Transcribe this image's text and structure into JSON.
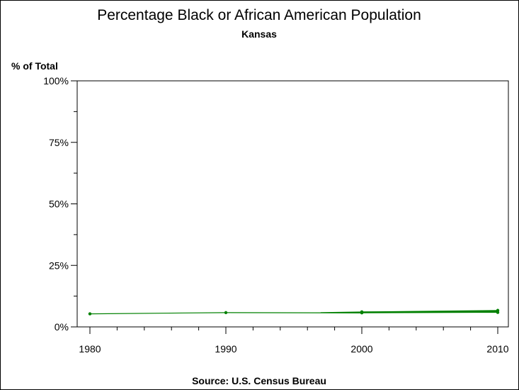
{
  "chart_data": {
    "type": "line",
    "title": "Percentage Black or African American Population",
    "subtitle": "Kansas",
    "ylabel": "% of Total",
    "xlabel": "",
    "source": "Source: U.S. Census Bureau",
    "xlim": [
      1980,
      2010
    ],
    "ylim": [
      0,
      100
    ],
    "x_ticks": [
      1980,
      1990,
      2000,
      2010
    ],
    "x_tick_labels": [
      "1980",
      "1990",
      "2000",
      "2010"
    ],
    "y_ticks": [
      0,
      25,
      50,
      75,
      100
    ],
    "y_tick_labels": [
      "0%",
      "25%",
      "50%",
      "75%",
      "100%"
    ],
    "grid": false,
    "series": [
      {
        "color": "#008000",
        "points": [
          {
            "x": 1980,
            "y": 5.3
          },
          {
            "x": 1990,
            "y": 5.8
          },
          {
            "x": 2000,
            "y": 5.7
          },
          {
            "x": 2000,
            "y": 6.1
          },
          {
            "x": 2010,
            "y": 5.9
          },
          {
            "x": 2010,
            "y": 6.7
          }
        ]
      }
    ]
  }
}
